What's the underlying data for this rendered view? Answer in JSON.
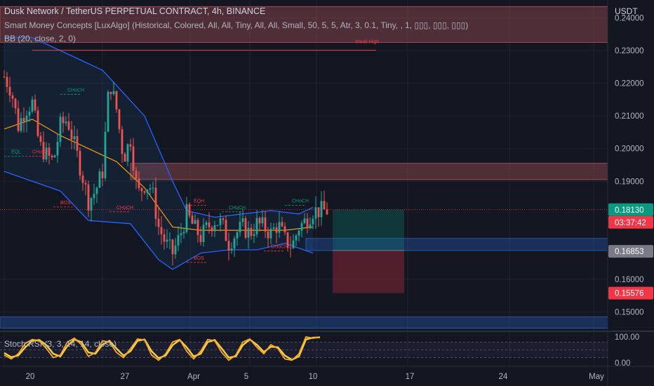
{
  "header": {
    "symbol_line": "Dusk Network / TetherUS PERPETUAL CONTRACT, 4h, BINANCE",
    "indicator_smc": "Smart Money Concepts [LuxAlgo] (Historical, Colored, All, All, Tiny, All, All, Small, 50, 5, 5, Atr, 3, 0.1, Tiny, , 1, ▯▯▯, ▯▯▯, ▯▯▯)",
    "indicator_bb": "BB (20, close, 2, 0)",
    "currency": "USDT"
  },
  "colors": {
    "background": "#131722",
    "up": "#26a69a",
    "down": "#ef5350",
    "bb_band": "#2962ff",
    "bb_basis": "#ff9800",
    "stoch_k": "#ffa726",
    "stoch_d": "#f5d142"
  },
  "price_badges": [
    {
      "label": "0.18130",
      "color": "#089981",
      "value": 0.1813
    },
    {
      "label": "03:37:42",
      "color": "#f23645",
      "value": 0.1799
    },
    {
      "label": "0.16853",
      "color": "#787b86",
      "value": 0.16853
    },
    {
      "label": "0.15576",
      "color": "#f23645",
      "value": 0.15576
    }
  ],
  "chart_data": {
    "type": "candlestick",
    "y_axis": {
      "ticks": [
        "0.24000",
        "0.23000",
        "0.22000",
        "0.21000",
        "0.20000",
        "0.19000",
        "0.16000",
        "0.15000"
      ],
      "range": [
        0.1445,
        0.2455
      ]
    },
    "x_axis": {
      "ticks": [
        "20",
        "27",
        "Apr",
        "5",
        "10",
        "17",
        "24",
        "May"
      ]
    },
    "price_path": [
      [
        0,
        0.222
      ],
      [
        1,
        0.218
      ],
      [
        2,
        0.207
      ],
      [
        3,
        0.212
      ],
      [
        4,
        0.214
      ],
      [
        5,
        0.201
      ],
      [
        6,
        0.198
      ],
      [
        7,
        0.196
      ],
      [
        8,
        0.207
      ],
      [
        9,
        0.209
      ],
      [
        10,
        0.201
      ],
      [
        11,
        0.193
      ],
      [
        12,
        0.184
      ],
      [
        13,
        0.187
      ],
      [
        14,
        0.193
      ],
      [
        15,
        0.221
      ],
      [
        16,
        0.212
      ],
      [
        17,
        0.197
      ],
      [
        18,
        0.203
      ],
      [
        19,
        0.186
      ],
      [
        20,
        0.189
      ],
      [
        21,
        0.188
      ],
      [
        22,
        0.176
      ],
      [
        23,
        0.171
      ],
      [
        24,
        0.168
      ],
      [
        25,
        0.173
      ],
      [
        26,
        0.18
      ],
      [
        27,
        0.176
      ],
      [
        28,
        0.173
      ],
      [
        29,
        0.176
      ],
      [
        30,
        0.178
      ],
      [
        31,
        0.177
      ],
      [
        32,
        0.171
      ],
      [
        33,
        0.174
      ],
      [
        34,
        0.176
      ],
      [
        35,
        0.174
      ],
      [
        36,
        0.177
      ],
      [
        37,
        0.176
      ],
      [
        38,
        0.174
      ],
      [
        39,
        0.177
      ],
      [
        40,
        0.172
      ],
      [
        41,
        0.17
      ],
      [
        42,
        0.176
      ],
      [
        43,
        0.178
      ],
      [
        44,
        0.181
      ]
    ],
    "bb_upper": [
      [
        0,
        0.234
      ],
      [
        4,
        0.234
      ],
      [
        10,
        0.228
      ],
      [
        14,
        0.224
      ],
      [
        20,
        0.21
      ],
      [
        24,
        0.19
      ],
      [
        26,
        0.181
      ],
      [
        30,
        0.179
      ],
      [
        34,
        0.18
      ],
      [
        38,
        0.181
      ],
      [
        42,
        0.18
      ],
      [
        44,
        0.182
      ]
    ],
    "bb_basis": [
      [
        0,
        0.206
      ],
      [
        4,
        0.209
      ],
      [
        8,
        0.204
      ],
      [
        12,
        0.2
      ],
      [
        16,
        0.196
      ],
      [
        20,
        0.188
      ],
      [
        24,
        0.176
      ],
      [
        28,
        0.175
      ],
      [
        32,
        0.175
      ],
      [
        36,
        0.175
      ],
      [
        40,
        0.175
      ],
      [
        44,
        0.176
      ]
    ],
    "bb_lower": [
      [
        0,
        0.193
      ],
      [
        4,
        0.19
      ],
      [
        8,
        0.187
      ],
      [
        12,
        0.178
      ],
      [
        18,
        0.177
      ],
      [
        22,
        0.166
      ],
      [
        24,
        0.163
      ],
      [
        28,
        0.168
      ],
      [
        32,
        0.169
      ],
      [
        36,
        0.169
      ],
      [
        40,
        0.171
      ],
      [
        44,
        0.168
      ]
    ],
    "zones": [
      {
        "kind": "supply",
        "from": 0.2435,
        "to": 0.2325,
        "x_start": 0,
        "x_end": 100
      },
      {
        "kind": "supply",
        "from": 0.1955,
        "to": 0.1905,
        "x_start": 18,
        "x_end": 100
      },
      {
        "kind": "demand",
        "from": 0.1725,
        "to": 0.1688,
        "x_start": 43,
        "x_end": 100
      },
      {
        "kind": "demand",
        "from": 0.1485,
        "to": 0.145,
        "x_start": 0,
        "x_end": 100
      }
    ],
    "position": {
      "entry": 0.1688,
      "target": 0.1813,
      "stop": 0.15576,
      "x_start": 44,
      "x_end": 55
    },
    "strong_high": {
      "label": "Weak High",
      "value": 0.2301,
      "x_start": 4,
      "x_end": 50
    },
    "smc_labels": [
      {
        "text": "EQL",
        "x": 1,
        "y": 0.1985,
        "kind": "eq"
      },
      {
        "text": "CHoCH",
        "x": 4,
        "y": 0.1985,
        "kind": "bear"
      },
      {
        "text": "CHoCH",
        "x": 9,
        "y": 0.2175,
        "kind": "bull"
      },
      {
        "text": "BOS",
        "x": 8,
        "y": 0.183,
        "kind": "bear"
      },
      {
        "text": "CHoCH",
        "x": 16,
        "y": 0.1815,
        "kind": "bear"
      },
      {
        "text": "EQH",
        "x": 27,
        "y": 0.1835,
        "kind": "bear"
      },
      {
        "text": "CHoCH",
        "x": 32,
        "y": 0.1815,
        "kind": "bull"
      },
      {
        "text": "BOS",
        "x": 27,
        "y": 0.166,
        "kind": "bear"
      },
      {
        "text": "CHoCH",
        "x": 38,
        "y": 0.1695,
        "kind": "bear"
      },
      {
        "text": "CHoCH",
        "x": 41,
        "y": 0.1835,
        "kind": "bull"
      }
    ],
    "stoch_rsi": {
      "label": "Stoch RSI (3, 3, 14, 14, close)",
      "ticks": [
        "100.00",
        "0.00"
      ],
      "k": [
        30,
        15,
        35,
        75,
        90,
        85,
        55,
        20,
        30,
        80,
        95,
        70,
        25,
        40,
        85,
        80,
        40,
        20,
        55,
        92,
        88,
        30,
        10,
        35,
        80,
        90,
        45,
        15,
        45,
        90,
        85,
        40,
        10,
        30,
        80,
        92,
        60,
        35,
        70,
        55,
        15,
        10,
        35,
        100,
        95,
        100
      ],
      "d": [
        38,
        22,
        28,
        60,
        85,
        88,
        68,
        35,
        25,
        65,
        90,
        80,
        40,
        35,
        70,
        85,
        55,
        28,
        45,
        85,
        90,
        45,
        18,
        28,
        68,
        88,
        60,
        25,
        35,
        80,
        88,
        55,
        20,
        25,
        68,
        90,
        70,
        42,
        62,
        60,
        28,
        12,
        25,
        90,
        97,
        98
      ]
    }
  }
}
